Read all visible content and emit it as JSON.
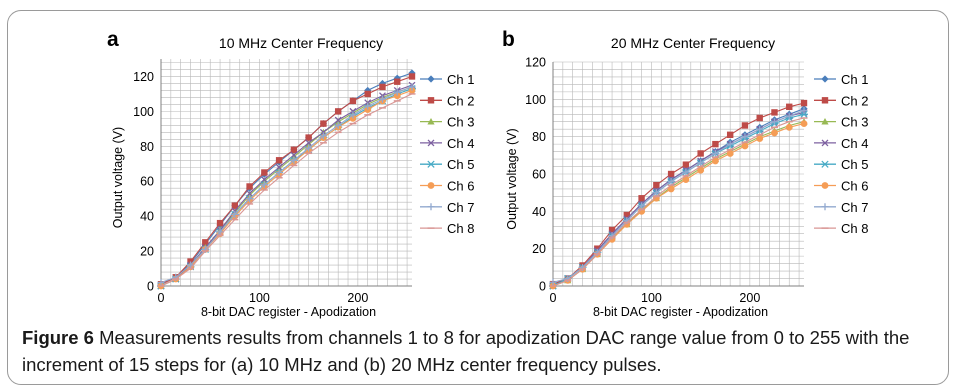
{
  "caption": {
    "label": "Figure 6",
    "text": "Measurements results from channels 1 to 8 for apodization DAC range value from 0 to 255 with the increment of 15 steps for (a) 10 MHz and (b) 20 MHz center frequency pulses."
  },
  "colors": {
    "Ch 1": "#4a7ebb",
    "Ch 2": "#be4b48",
    "Ch 3": "#98b954",
    "Ch 4": "#7d60a0",
    "Ch 5": "#46aac5",
    "Ch 6": "#f59d56",
    "Ch 7": "#92a9cf",
    "Ch 8": "#d99694"
  },
  "chart_data": [
    {
      "panel": "a",
      "type": "line",
      "title": "10 MHz Center Frequency",
      "xlabel": "8-bit DAC register - Apodization",
      "ylabel": "Output voltage (V)",
      "xlim": [
        0,
        255
      ],
      "ylim": [
        0,
        130
      ],
      "xticks": [
        0,
        100,
        200
      ],
      "yticks": [
        0,
        20,
        40,
        60,
        80,
        100,
        120
      ],
      "grid": true,
      "legend": "right",
      "x": [
        0,
        15,
        30,
        45,
        60,
        75,
        90,
        105,
        120,
        135,
        150,
        165,
        180,
        195,
        210,
        225,
        240,
        255
      ],
      "series": [
        {
          "name": "Ch 1",
          "marker": "diamond",
          "values": [
            1,
            5,
            13,
            24,
            35,
            46,
            56,
            64,
            71,
            78,
            85,
            93,
            100,
            106,
            112,
            116,
            119,
            122
          ]
        },
        {
          "name": "Ch 2",
          "marker": "square",
          "values": [
            1,
            5,
            14,
            25,
            36,
            46,
            57,
            65,
            72,
            78,
            85,
            93,
            100,
            106,
            110,
            114,
            117,
            120
          ]
        },
        {
          "name": "Ch 3",
          "marker": "triangle",
          "values": [
            0,
            4,
            12,
            22,
            32,
            42,
            52,
            60,
            67,
            74,
            81,
            88,
            94,
            99,
            104,
            108,
            111,
            114
          ]
        },
        {
          "name": "Ch 4",
          "marker": "x",
          "values": [
            0,
            4,
            12,
            22,
            32,
            43,
            53,
            61,
            68,
            75,
            82,
            88,
            95,
            100,
            105,
            109,
            112,
            115
          ]
        },
        {
          "name": "Ch 5",
          "marker": "star",
          "values": [
            0,
            4,
            11,
            21,
            31,
            41,
            50,
            58,
            65,
            72,
            78,
            85,
            91,
            97,
            102,
            106,
            110,
            113
          ]
        },
        {
          "name": "Ch 6",
          "marker": "circle",
          "values": [
            0,
            4,
            11,
            21,
            30,
            40,
            49,
            57,
            64,
            71,
            78,
            85,
            91,
            96,
            101,
            106,
            109,
            112
          ]
        },
        {
          "name": "Ch 7",
          "marker": "plus",
          "values": [
            2,
            5,
            12,
            21,
            31,
            41,
            50,
            58,
            65,
            72,
            79,
            86,
            92,
            98,
            103,
            107,
            111,
            114
          ]
        },
        {
          "name": "Ch 8",
          "marker": "dash",
          "values": [
            0,
            4,
            10,
            20,
            29,
            38,
            47,
            55,
            62,
            69,
            76,
            82,
            88,
            93,
            98,
            102,
            106,
            110
          ]
        }
      ]
    },
    {
      "panel": "b",
      "type": "line",
      "title": "20 MHz Center Frequency",
      "xlabel": "8-bit DAC register - Apodization",
      "ylabel": "Output voltage (V)",
      "xlim": [
        0,
        255
      ],
      "ylim": [
        0,
        120
      ],
      "xticks": [
        0,
        100,
        200
      ],
      "yticks": [
        0,
        20,
        40,
        60,
        80,
        100,
        120
      ],
      "grid": true,
      "legend": "right",
      "x": [
        0,
        15,
        30,
        45,
        60,
        75,
        90,
        105,
        120,
        135,
        150,
        165,
        180,
        195,
        210,
        225,
        240,
        255
      ],
      "series": [
        {
          "name": "Ch 1",
          "marker": "diamond",
          "values": [
            1,
            4,
            10,
            19,
            28,
            36,
            44,
            51,
            57,
            62,
            67,
            72,
            77,
            81,
            85,
            89,
            92,
            95
          ]
        },
        {
          "name": "Ch 2",
          "marker": "square",
          "values": [
            1,
            4,
            11,
            20,
            30,
            38,
            47,
            54,
            60,
            65,
            71,
            76,
            81,
            86,
            90,
            93,
            96,
            98
          ]
        },
        {
          "name": "Ch 3",
          "marker": "triangle",
          "values": [
            0,
            3,
            9,
            17,
            26,
            33,
            41,
            47,
            53,
            58,
            63,
            68,
            72,
            76,
            80,
            83,
            86,
            88
          ]
        },
        {
          "name": "Ch 4",
          "marker": "x",
          "values": [
            0,
            4,
            10,
            19,
            28,
            36,
            44,
            51,
            57,
            62,
            67,
            72,
            76,
            80,
            84,
            88,
            91,
            93
          ]
        },
        {
          "name": "Ch 5",
          "marker": "star",
          "values": [
            0,
            4,
            10,
            18,
            27,
            35,
            43,
            50,
            56,
            61,
            66,
            71,
            75,
            79,
            83,
            87,
            90,
            92
          ]
        },
        {
          "name": "Ch 6",
          "marker": "circle",
          "values": [
            0,
            3,
            9,
            17,
            25,
            33,
            40,
            47,
            52,
            57,
            62,
            67,
            71,
            75,
            79,
            82,
            85,
            87
          ]
        },
        {
          "name": "Ch 7",
          "marker": "plus",
          "values": [
            2,
            4,
            10,
            18,
            27,
            35,
            43,
            50,
            56,
            61,
            66,
            71,
            76,
            80,
            84,
            88,
            91,
            94
          ]
        },
        {
          "name": "Ch 8",
          "marker": "dash",
          "values": [
            0,
            3,
            9,
            17,
            26,
            34,
            41,
            48,
            54,
            59,
            64,
            69,
            73,
            77,
            81,
            85,
            88,
            90
          ]
        }
      ]
    }
  ]
}
